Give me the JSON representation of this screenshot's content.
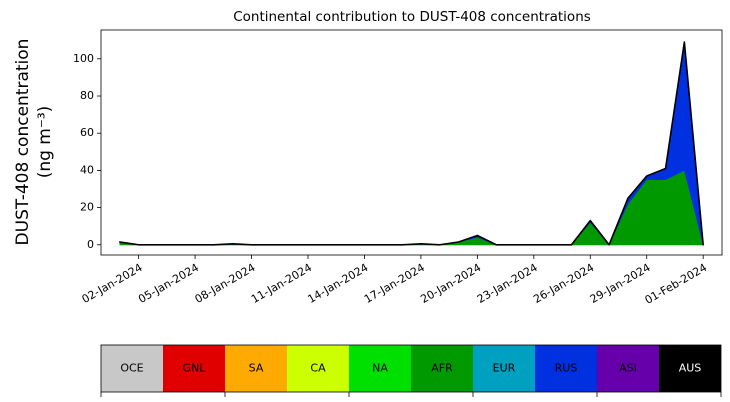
{
  "chart_data": {
    "type": "stacked-area",
    "title": "Continental contribution to DUST-408 concentrations",
    "y_label": "DUST-408 concentration",
    "y_label_units": "(ng m⁻³)",
    "x": [
      "2024-01-01",
      "2024-01-02",
      "2024-01-03",
      "2024-01-04",
      "2024-01-05",
      "2024-01-06",
      "2024-01-07",
      "2024-01-08",
      "2024-01-09",
      "2024-01-10",
      "2024-01-11",
      "2024-01-12",
      "2024-01-13",
      "2024-01-14",
      "2024-01-15",
      "2024-01-16",
      "2024-01-17",
      "2024-01-18",
      "2024-01-19",
      "2024-01-20",
      "2024-01-21",
      "2024-01-22",
      "2024-01-23",
      "2024-01-24",
      "2024-01-25",
      "2024-01-26",
      "2024-01-27",
      "2024-01-28",
      "2024-01-29",
      "2024-01-30",
      "2024-01-31",
      "2024-02-01"
    ],
    "series": [
      {
        "name": "OCE",
        "color": "#c8c8c8",
        "values": [
          0,
          0,
          0,
          0,
          0,
          0,
          0,
          0,
          0,
          0,
          0,
          0,
          0,
          0,
          0,
          0,
          0,
          0,
          0,
          0,
          0,
          0,
          0,
          0,
          0,
          0,
          0,
          0,
          0,
          0,
          0,
          0
        ]
      },
      {
        "name": "GNL",
        "color": "#e00000",
        "values": [
          0,
          0,
          0,
          0,
          0,
          0,
          0,
          0,
          0,
          0,
          0,
          0,
          0,
          0,
          0,
          0,
          0,
          0,
          0,
          0,
          0,
          0,
          0,
          0,
          0,
          0,
          0,
          0,
          0,
          0,
          0,
          0
        ]
      },
      {
        "name": "SA",
        "color": "#ffaa00",
        "values": [
          0,
          0,
          0,
          0,
          0,
          0,
          0,
          0,
          0,
          0,
          0,
          0,
          0,
          0,
          0,
          0,
          0,
          0,
          0,
          0,
          0,
          0,
          0,
          0,
          0,
          0,
          0,
          0,
          0,
          0,
          0,
          0
        ]
      },
      {
        "name": "CA",
        "color": "#ccff00",
        "values": [
          0,
          0,
          0,
          0,
          0,
          0,
          0,
          0,
          0,
          0,
          0,
          0,
          0,
          0,
          0,
          0,
          0,
          0,
          0,
          0,
          0,
          0,
          0,
          0,
          0,
          0,
          0,
          0,
          0,
          0,
          0,
          0
        ]
      },
      {
        "name": "NA",
        "color": "#00e000",
        "values": [
          0,
          0,
          0,
          0,
          0,
          0,
          0,
          0,
          0,
          0,
          0,
          0,
          0,
          0,
          0,
          0,
          0,
          0,
          0,
          0,
          0,
          0,
          0,
          0,
          0,
          0,
          0,
          0,
          0,
          0,
          0,
          0
        ]
      },
      {
        "name": "AFR",
        "color": "#009900",
        "values": [
          1.5,
          0,
          0,
          0,
          0,
          0,
          0.5,
          0,
          0,
          0,
          0,
          0,
          0,
          0,
          0,
          0,
          0.5,
          0,
          1.5,
          4,
          0,
          0,
          0,
          0,
          0,
          12,
          0,
          22,
          35,
          35,
          40,
          0
        ]
      },
      {
        "name": "EUR",
        "color": "#00a0c0",
        "values": [
          0,
          0,
          0,
          0,
          0,
          0,
          0,
          0,
          0,
          0,
          0,
          0,
          0,
          0,
          0,
          0,
          0,
          0,
          0,
          0,
          0,
          0,
          0,
          0,
          0,
          0,
          0,
          0,
          0,
          0,
          0,
          0
        ]
      },
      {
        "name": "RUS",
        "color": "#0030e0",
        "values": [
          0,
          0,
          0,
          0,
          0,
          0,
          0,
          0,
          0,
          0,
          0,
          0,
          0,
          0,
          0,
          0,
          0,
          0,
          0,
          1,
          0,
          0,
          0,
          0,
          0,
          1,
          0,
          3,
          2,
          6,
          69,
          0
        ]
      },
      {
        "name": "ASI",
        "color": "#6600aa",
        "values": [
          0,
          0,
          0,
          0,
          0,
          0,
          0,
          0,
          0,
          0,
          0,
          0,
          0,
          0,
          0,
          0,
          0,
          0,
          0,
          0,
          0,
          0,
          0,
          0,
          0,
          0,
          0,
          0,
          0,
          0,
          0,
          0
        ]
      },
      {
        "name": "AUS",
        "color": "#000000",
        "values": [
          0,
          0,
          0,
          0,
          0,
          0,
          0,
          0,
          0,
          0,
          0,
          0,
          0,
          0,
          0,
          0,
          0,
          0,
          0,
          0,
          0,
          0,
          0,
          0,
          0,
          0,
          0,
          0,
          0,
          0,
          0,
          0
        ]
      }
    ],
    "xlim": [
      "2023-12-31",
      "2024-02-02"
    ],
    "xticks": [
      {
        "value": "2024-01-02",
        "label": "02-Jan-2024"
      },
      {
        "value": "2024-01-05",
        "label": "05-Jan-2024"
      },
      {
        "value": "2024-01-08",
        "label": "08-Jan-2024"
      },
      {
        "value": "2024-01-11",
        "label": "11-Jan-2024"
      },
      {
        "value": "2024-01-14",
        "label": "14-Jan-2024"
      },
      {
        "value": "2024-01-17",
        "label": "17-Jan-2024"
      },
      {
        "value": "2024-01-20",
        "label": "20-Jan-2024"
      },
      {
        "value": "2024-01-23",
        "label": "23-Jan-2024"
      },
      {
        "value": "2024-01-26",
        "label": "26-Jan-2024"
      },
      {
        "value": "2024-01-29",
        "label": "29-Jan-2024"
      },
      {
        "value": "2024-02-01",
        "label": "01-Feb-2024"
      }
    ],
    "ylim": [
      -5.5,
      115.5
    ],
    "yticks": [
      0,
      20,
      40,
      60,
      80,
      100
    ],
    "grid": false,
    "legend": "bottom"
  }
}
